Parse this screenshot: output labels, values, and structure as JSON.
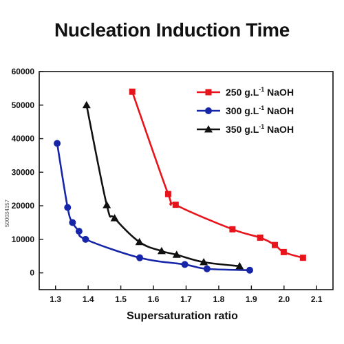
{
  "chart_data": {
    "type": "line",
    "title": "Nucleation Induction Time",
    "xlabel": "Supersaturation ratio",
    "ylabel": "",
    "xlim": [
      1.25,
      2.15
    ],
    "ylim": [
      -5000,
      60000
    ],
    "xticks": [
      1.3,
      1.4,
      1.5,
      1.6,
      1.7,
      1.8,
      1.9,
      2.0,
      2.1
    ],
    "xtick_labels": [
      "1.3",
      "1.4",
      "1.5",
      "1.6",
      "1.7",
      "1.8",
      "1.9",
      "2.0",
      "2.1"
    ],
    "yticks": [
      0,
      10000,
      20000,
      30000,
      40000,
      50000,
      60000
    ],
    "ytick_labels": [
      "0",
      "10000",
      "20000",
      "30000",
      "40000",
      "50000",
      "60000"
    ],
    "grid": false,
    "legend_position": "top-right",
    "series": [
      {
        "name": "250 g.L-1 NaOH",
        "legend_base": "250 g.L",
        "legend_sup": "-1",
        "legend_tail": " NaOH",
        "color": "#e8141b",
        "marker": "square",
        "x": [
          1.535,
          1.645,
          1.668,
          1.842,
          1.927,
          1.972,
          1.999,
          2.058
        ],
        "y": [
          54000,
          23500,
          20300,
          13000,
          10500,
          8300,
          6200,
          4500
        ]
      },
      {
        "name": "300 g.L-1 NaOH",
        "legend_base": "300 g.L",
        "legend_sup": "-1",
        "legend_tail": " NaOH",
        "color": "#1726a8",
        "marker": "circle",
        "x": [
          1.305,
          1.337,
          1.352,
          1.372,
          1.392,
          1.558,
          1.696,
          1.764,
          1.895
        ],
        "y": [
          38600,
          19500,
          15000,
          12400,
          10000,
          4500,
          2500,
          1200,
          800
        ]
      },
      {
        "name": "350 g.L-1 NaOH",
        "legend_base": "350 g.L",
        "legend_sup": "-1",
        "legend_tail": " NaOH",
        "color": "#111111",
        "marker": "triangle",
        "x": [
          1.395,
          1.457,
          1.481,
          1.557,
          1.625,
          1.671,
          1.754,
          1.864
        ],
        "y": [
          50000,
          20200,
          16300,
          9200,
          6500,
          5400,
          3200,
          2000
        ]
      }
    ]
  },
  "side_id": "500034157"
}
